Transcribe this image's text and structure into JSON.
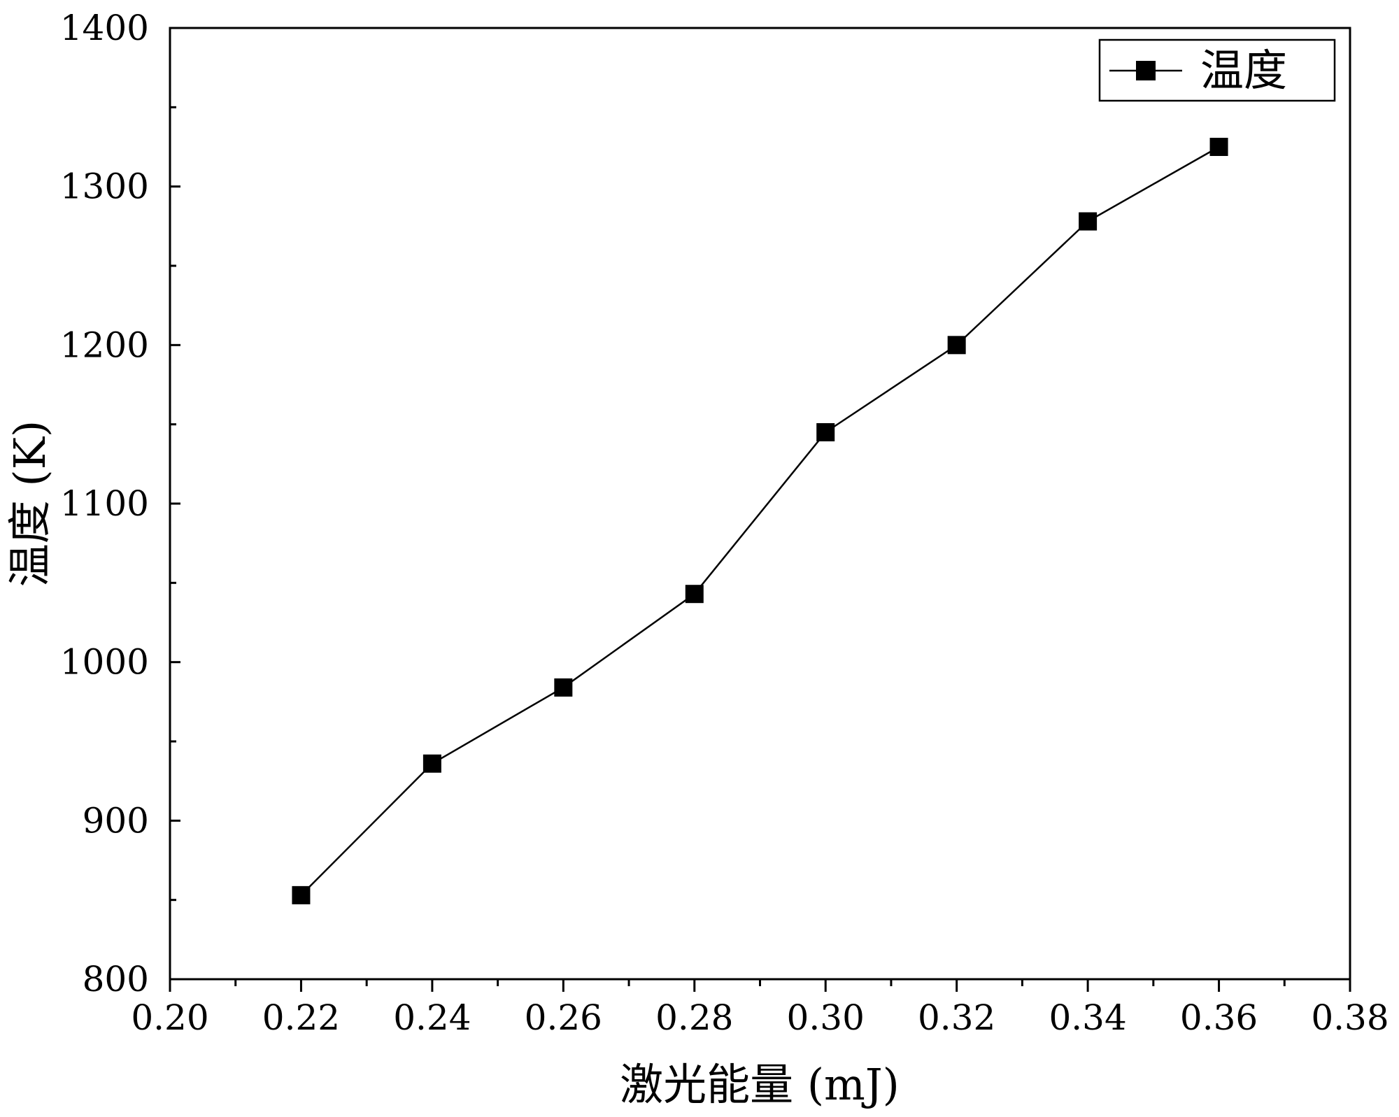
{
  "chart_data": {
    "type": "line",
    "xlabel": "激光能量 (mJ)",
    "ylabel": "温度 (K)",
    "xlim": [
      0.2,
      0.38
    ],
    "ylim": [
      800,
      1400
    ],
    "x_ticks": [
      0.2,
      0.22,
      0.24,
      0.26,
      0.28,
      0.3,
      0.32,
      0.34,
      0.36,
      0.38
    ],
    "x_tick_labels": [
      "0.20",
      "0.22",
      "0.24",
      "0.26",
      "0.28",
      "0.30",
      "0.32",
      "0.34",
      "0.36",
      "0.38"
    ],
    "y_ticks": [
      800,
      900,
      1000,
      1100,
      1200,
      1300,
      1400
    ],
    "y_tick_labels": [
      "800",
      "900",
      "1000",
      "1100",
      "1200",
      "1300",
      "1400"
    ],
    "x_minor_step": 0.01,
    "y_minor_step": 50,
    "grid": false,
    "legend_position": "top-right",
    "series": [
      {
        "name": "温度",
        "color": "#000000",
        "marker": "square",
        "x": [
          0.22,
          0.24,
          0.26,
          0.28,
          0.3,
          0.32,
          0.34,
          0.36
        ],
        "y": [
          853,
          936,
          984,
          1043,
          1145,
          1200,
          1278,
          1325
        ]
      }
    ]
  }
}
